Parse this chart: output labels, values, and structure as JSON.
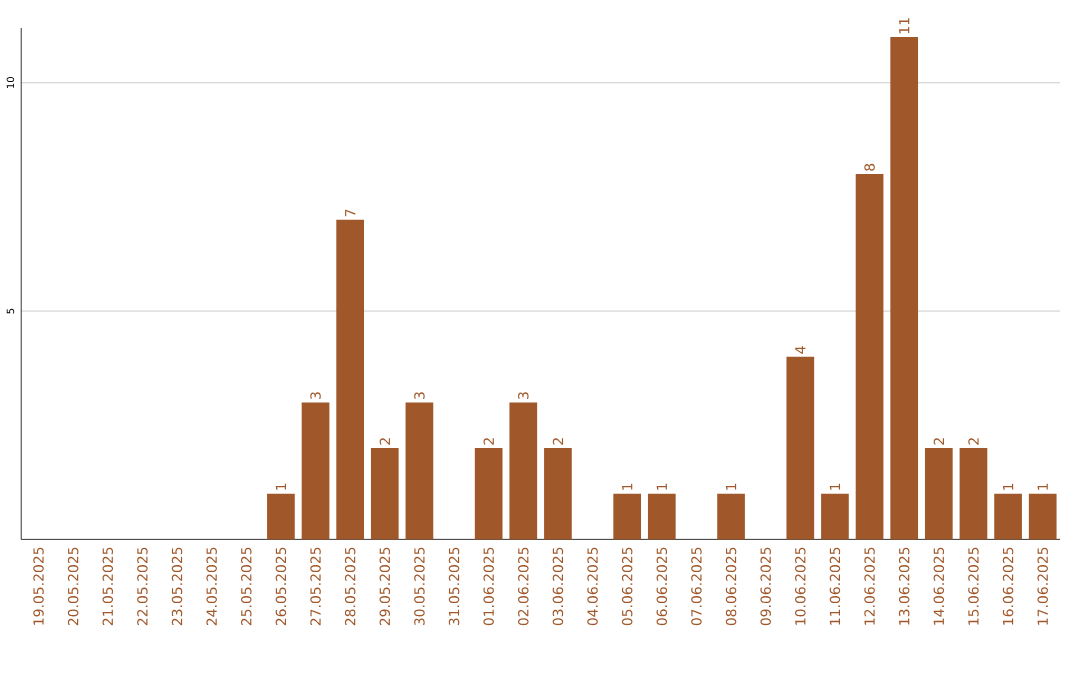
{
  "chart_data": {
    "type": "bar",
    "categories": [
      "19.05.2025",
      "20.05.2025",
      "21.05.2025",
      "22.05.2025",
      "23.05.2025",
      "24.05.2025",
      "25.05.2025",
      "26.05.2025",
      "27.05.2025",
      "28.05.2025",
      "29.05.2025",
      "30.05.2025",
      "31.05.2025",
      "01.06.2025",
      "02.06.2025",
      "03.06.2025",
      "04.06.2025",
      "05.06.2025",
      "06.06.2025",
      "07.06.2025",
      "08.06.2025",
      "09.06.2025",
      "10.06.2025",
      "11.06.2025",
      "12.06.2025",
      "13.06.2025",
      "14.06.2025",
      "15.06.2025",
      "16.06.2025",
      "17.06.2025"
    ],
    "values": [
      0,
      0,
      0,
      0,
      0,
      0,
      0,
      1,
      3,
      7,
      2,
      3,
      0,
      2,
      3,
      2,
      0,
      1,
      1,
      0,
      1,
      0,
      4,
      1,
      8,
      11,
      2,
      2,
      1,
      1
    ],
    "value_labels": [
      null,
      null,
      null,
      null,
      null,
      null,
      null,
      "1",
      "3",
      "7",
      "2",
      "3",
      null,
      "2",
      "3",
      "2",
      null,
      "1",
      "1",
      null,
      "1",
      null,
      "4",
      "1",
      "8",
      "11",
      "2",
      "2",
      "1",
      "1"
    ],
    "color": "#a0582a",
    "ylim": [
      0,
      11.2
    ],
    "yticks": [
      5,
      10
    ],
    "grid": "y"
  }
}
